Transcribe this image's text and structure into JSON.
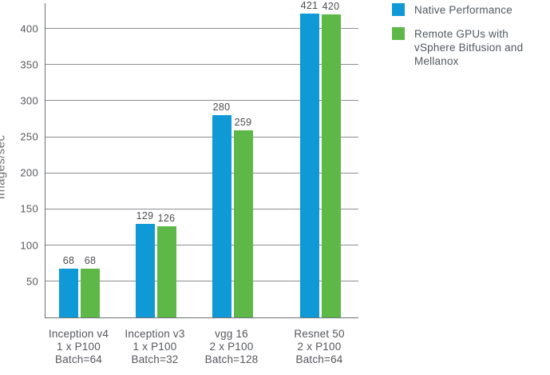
{
  "chart_data": {
    "type": "bar",
    "title": "",
    "xlabel": "",
    "ylabel": "Images/sec",
    "categories": [
      {
        "lines": [
          "Inception v4",
          "1 x P100",
          "Batch=64"
        ]
      },
      {
        "lines": [
          "Inception v3",
          "1 x P100",
          "Batch=32"
        ]
      },
      {
        "lines": [
          "vgg 16",
          "2 x P100",
          "Batch=128"
        ]
      },
      {
        "lines": [
          "Resnet 50",
          "2 x P100",
          "Batch=64"
        ]
      }
    ],
    "series": [
      {
        "name": "Native Performance",
        "color": "#0f99d6",
        "values": [
          68,
          129,
          280,
          421
        ]
      },
      {
        "name": "Remote GPUs with vSphere Bitfusion and Mellanox",
        "color": "#5eb847",
        "values": [
          68,
          126,
          259,
          420
        ]
      }
    ],
    "yticks": [
      50,
      100,
      150,
      200,
      250,
      300,
      350,
      400
    ],
    "ylim": [
      0,
      435
    ],
    "grid": true,
    "bar_value_labels": true,
    "legend_position": "top-right",
    "colors": {
      "background": "#ffffff",
      "axis": "#6e7073",
      "gridline": "#8b8d90",
      "tick_text": "#55575c",
      "value_text": "#4c4d51",
      "category_text": "#55575c",
      "legend_text": "#4f5a62"
    }
  }
}
